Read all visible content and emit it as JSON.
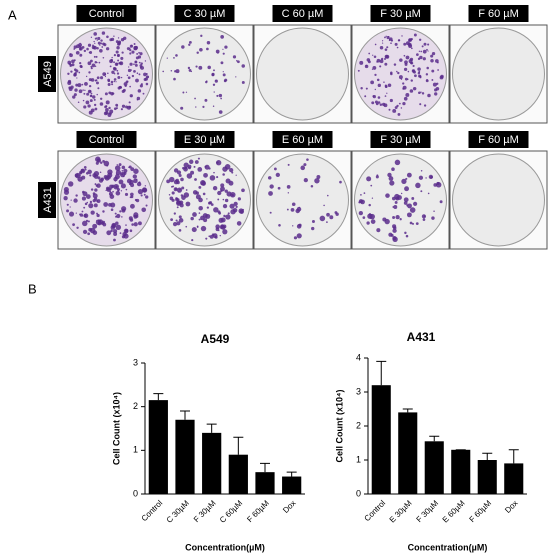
{
  "panel_a": {
    "label": "A",
    "rows": [
      {
        "name": "A549",
        "columns": [
          "Control",
          "C 30 µM",
          "C 60 µM",
          "F 30 µM",
          "F 60 µM"
        ]
      },
      {
        "name": "A431",
        "columns": [
          "Control",
          "E 30 µM",
          "E 60 µM",
          "F 30 µM",
          "F 60 µM"
        ]
      }
    ]
  },
  "panel_b": {
    "label": "B"
  },
  "chart_data": [
    {
      "type": "bar",
      "title": "A549",
      "y_label": "Cell Count (x10⁴)",
      "x_label": "Concentration(µM)",
      "categories": [
        "Control",
        "C 30µM",
        "F 30µM",
        "C 60µM",
        "F 60µM",
        "Dox"
      ],
      "values": [
        2.15,
        1.7,
        1.4,
        0.9,
        0.5,
        0.4
      ],
      "errors": [
        0.15,
        0.2,
        0.2,
        0.4,
        0.2,
        0.1
      ],
      "color": "#000000",
      "ylim": [
        0,
        3
      ],
      "yticks": [
        0,
        1,
        2,
        3
      ]
    },
    {
      "type": "bar",
      "title": "A431",
      "y_label": "Cell Count (x10⁴)",
      "x_label": "Concentration(µM)",
      "categories": [
        "Control",
        "E 30µM",
        "F 30µM",
        "E 60µM",
        "F 60µM",
        "Dox"
      ],
      "values": [
        3.2,
        2.4,
        1.55,
        1.3,
        1.0,
        0.9
      ],
      "errors": [
        0.7,
        0.1,
        0.15,
        0,
        0.2,
        0.4
      ],
      "color": "#000000",
      "ylim": [
        0,
        4
      ],
      "yticks": [
        0,
        1,
        2,
        3,
        4
      ]
    }
  ]
}
